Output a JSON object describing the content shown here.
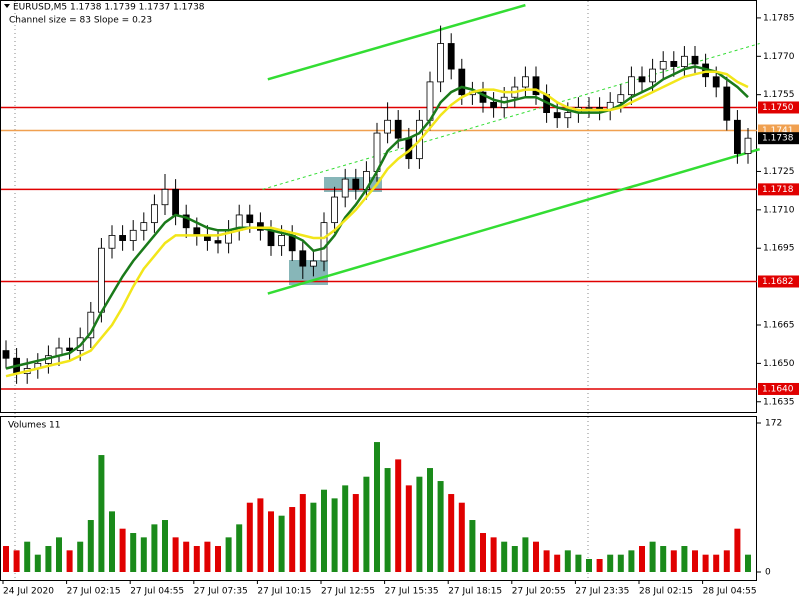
{
  "chart_data": {
    "type": "candlestick",
    "title": "EURUSD,M5  1.1738 1.1739 1.1737 1.1738",
    "subtitle": "Channel size = 83 Slope = 0.23",
    "categories": [
      "24 Jul 2020",
      null,
      null,
      null,
      null,
      null,
      "27 Jul 02:15",
      null,
      null,
      null,
      null,
      null,
      "27 Jul 04:55",
      null,
      null,
      null,
      null,
      null,
      "27 Jul 07:35",
      null,
      null,
      null,
      null,
      null,
      "27 Jul 10:15",
      null,
      null,
      null,
      null,
      null,
      "27 Jul 12:55",
      null,
      null,
      null,
      null,
      null,
      "27 Jul 15:35",
      null,
      null,
      null,
      null,
      null,
      "27 Jul 18:15",
      null,
      null,
      null,
      null,
      null,
      "27 Jul 20:55",
      null,
      null,
      null,
      null,
      null,
      "27 Jul 23:35",
      null,
      null,
      null,
      null,
      null,
      "28 Jul 02:15",
      null,
      null,
      null,
      null,
      null,
      "28 Jul 04:55",
      null,
      null,
      null,
      null
    ],
    "open": [
      1.1655,
      1.1652,
      1.1646,
      1.1648,
      1.165,
      1.1653,
      1.1656,
      1.1655,
      1.166,
      1.167,
      1.1695,
      1.17,
      1.1698,
      1.1702,
      1.1705,
      1.1712,
      1.1718,
      1.1708,
      1.1703,
      1.17,
      1.1698,
      1.1697,
      1.1702,
      1.1708,
      1.1705,
      1.1702,
      1.1696,
      1.17,
      1.1694,
      1.1688,
      1.169,
      1.1705,
      1.1715,
      1.1722,
      1.1718,
      1.1725,
      1.174,
      1.1745,
      1.1738,
      1.173,
      1.1745,
      1.176,
      1.1775,
      1.1765,
      1.1755,
      1.1756,
      1.1752,
      1.175,
      1.1754,
      1.1758,
      1.1762,
      1.1755,
      1.1748,
      1.1746,
      1.1748,
      1.175,
      1.175,
      1.1749,
      1.1752,
      1.1755,
      1.1762,
      1.176,
      1.1765,
      1.1768,
      1.1766,
      1.177,
      1.1767,
      1.1762,
      1.1758,
      1.1745,
      1.1732
    ],
    "high": [
      1.1659,
      1.1656,
      1.1652,
      1.1654,
      1.1657,
      1.166,
      1.166,
      1.1664,
      1.1674,
      1.1699,
      1.1704,
      1.1704,
      1.1706,
      1.1709,
      1.1716,
      1.1724,
      1.1722,
      1.1712,
      1.1707,
      1.1704,
      1.1702,
      1.1706,
      1.1712,
      1.1712,
      1.1709,
      1.1706,
      1.1704,
      1.1704,
      1.1698,
      1.1694,
      1.1709,
      1.1719,
      1.1726,
      1.1726,
      1.1729,
      1.1744,
      1.1752,
      1.1749,
      1.1742,
      1.1749,
      1.1764,
      1.1782,
      1.1779,
      1.1769,
      1.176,
      1.176,
      1.1756,
      1.1758,
      1.1762,
      1.1766,
      1.1766,
      1.1759,
      1.1752,
      1.1752,
      1.1754,
      1.1754,
      1.1754,
      1.1756,
      1.1759,
      1.1766,
      1.1766,
      1.1769,
      1.1772,
      1.1772,
      1.1774,
      1.1774,
      1.1771,
      1.1766,
      1.1762,
      1.1749,
      1.1742
    ],
    "low": [
      1.1648,
      1.1642,
      1.1642,
      1.1644,
      1.1646,
      1.1649,
      1.1651,
      1.1651,
      1.1656,
      1.1666,
      1.1691,
      1.1694,
      1.1694,
      1.1698,
      1.1701,
      1.1708,
      1.1704,
      1.1699,
      1.1696,
      1.1694,
      1.1693,
      1.1693,
      1.1698,
      1.1701,
      1.1698,
      1.1692,
      1.1692,
      1.169,
      1.1683,
      1.1684,
      1.1686,
      1.1701,
      1.1711,
      1.1714,
      1.1714,
      1.1721,
      1.1736,
      1.1734,
      1.1726,
      1.1726,
      1.1741,
      1.1756,
      1.1761,
      1.1751,
      1.1751,
      1.1748,
      1.1746,
      1.1746,
      1.175,
      1.1754,
      1.1751,
      1.1744,
      1.1742,
      1.1742,
      1.1744,
      1.1746,
      1.1745,
      1.1745,
      1.1748,
      1.1751,
      1.1756,
      1.1756,
      1.1761,
      1.1762,
      1.1762,
      1.1763,
      1.1758,
      1.1754,
      1.1741,
      1.1728,
      1.1728
    ],
    "close": [
      1.1652,
      1.1646,
      1.1648,
      1.165,
      1.1653,
      1.1656,
      1.1655,
      1.166,
      1.167,
      1.1695,
      1.17,
      1.1698,
      1.1702,
      1.1705,
      1.1712,
      1.1718,
      1.1708,
      1.1703,
      1.17,
      1.1698,
      1.1697,
      1.1702,
      1.1708,
      1.1705,
      1.1702,
      1.1696,
      1.17,
      1.1694,
      1.1688,
      1.169,
      1.1705,
      1.1715,
      1.1722,
      1.1718,
      1.1725,
      1.174,
      1.1745,
      1.1738,
      1.173,
      1.1745,
      1.176,
      1.1775,
      1.1765,
      1.1755,
      1.1756,
      1.1752,
      1.175,
      1.1754,
      1.1758,
      1.1762,
      1.1755,
      1.1748,
      1.1746,
      1.1748,
      1.175,
      1.175,
      1.1749,
      1.1752,
      1.1755,
      1.1762,
      1.176,
      1.1765,
      1.1768,
      1.1766,
      1.177,
      1.1767,
      1.1762,
      1.1758,
      1.1745,
      1.1732,
      1.1738
    ],
    "series": [
      {
        "color": "#1a7a1a",
        "values": [
          1.1648,
          1.1649,
          1.165,
          1.1651,
          1.1652,
          1.1653,
          1.1654,
          1.1657,
          1.1662,
          1.167,
          1.1677,
          1.1684,
          1.169,
          1.1695,
          1.17,
          1.1705,
          1.1708,
          1.1707,
          1.1705,
          1.1703,
          1.1702,
          1.1702,
          1.1703,
          1.1703,
          1.1703,
          1.1702,
          1.1701,
          1.17,
          1.1698,
          1.1694,
          1.1695,
          1.17,
          1.1707,
          1.1712,
          1.1718,
          1.1725,
          1.1733,
          1.1737,
          1.1738,
          1.174,
          1.1745,
          1.1752,
          1.1756,
          1.1758,
          1.1757,
          1.1755,
          1.1753,
          1.1752,
          1.1753,
          1.1754,
          1.1754,
          1.1752,
          1.175,
          1.1749,
          1.1748,
          1.1748,
          1.1748,
          1.1749,
          1.1751,
          1.1754,
          1.1756,
          1.1758,
          1.1761,
          1.1763,
          1.1765,
          1.1766,
          1.1765,
          1.1764,
          1.1761,
          1.1758,
          1.1754
        ]
      },
      {
        "color": "#f2e61a",
        "values": [
          1.1645,
          1.1646,
          1.1647,
          1.1648,
          1.1649,
          1.165,
          1.1651,
          1.1653,
          1.1655,
          1.166,
          1.1665,
          1.1672,
          1.168,
          1.1687,
          1.1692,
          1.1697,
          1.17,
          1.17,
          1.17,
          1.17,
          1.17,
          1.1701,
          1.1702,
          1.1703,
          1.1703,
          1.1703,
          1.1702,
          1.1701,
          1.17,
          1.1699,
          1.1699,
          1.1702,
          1.1706,
          1.171,
          1.1715,
          1.172,
          1.1726,
          1.173,
          1.1733,
          1.1737,
          1.1742,
          1.1747,
          1.1751,
          1.1754,
          1.1756,
          1.1757,
          1.1757,
          1.1756,
          1.1756,
          1.1757,
          1.1757,
          1.1755,
          1.1752,
          1.175,
          1.1749,
          1.1749,
          1.1749,
          1.1749,
          1.175,
          1.1752,
          1.1754,
          1.1756,
          1.1758,
          1.176,
          1.1762,
          1.1763,
          1.1764,
          1.1764,
          1.1763,
          1.176,
          1.1758
        ]
      }
    ],
    "trendlines": [
      {
        "x": [
          24.7,
          49.0
        ],
        "y": [
          1.1761,
          1.179
        ],
        "color": "#33dd33",
        "dashed": false
      },
      {
        "x": [
          24.2,
          71.1
        ],
        "y": [
          1.1718,
          1.1775
        ],
        "color": "#33dd33",
        "dashed": true
      },
      {
        "x": [
          24.7,
          71.1
        ],
        "y": [
          1.16773,
          1.17337
        ],
        "color": "#33dd33",
        "dashed": false
      }
    ],
    "levels": [
      {
        "value": 1.1741,
        "label": "1.1741",
        "color": "#f0a050"
      },
      {
        "value": 1.175,
        "label": "1.1750",
        "color": "#e00000"
      },
      {
        "value": 1.1718,
        "label": "1.1718",
        "color": "#e00000"
      },
      {
        "value": 1.1682,
        "label": "1.1682",
        "color": "#e00000"
      },
      {
        "value": 1.164,
        "label": "1.1640",
        "color": "#e00000"
      }
    ],
    "last_price": {
      "value": 1.1738,
      "label": "1.1738"
    },
    "ylim": [
      1.1631,
      1.1792
    ],
    "yticks": [
      {
        "value": 1.1785,
        "label": "1.1785"
      },
      {
        "value": 1.177,
        "label": "1.1770"
      },
      {
        "value": 1.1755,
        "label": "1.1755"
      },
      {
        "value": 1.1725,
        "label": "1.1725"
      },
      {
        "value": 1.171,
        "label": "1.1710"
      },
      {
        "value": 1.1695,
        "label": "1.1695"
      },
      {
        "value": 1.1665,
        "label": "1.1665"
      },
      {
        "value": 1.165,
        "label": "1.1650"
      },
      {
        "value": 1.1635,
        "label": "1.1635"
      }
    ],
    "volume": {
      "title": "Volumes 11",
      "up_color": "#1a8a1a",
      "down_color": "#e00000",
      "values": [
        30,
        25,
        35,
        20,
        30,
        40,
        25,
        35,
        60,
        135,
        70,
        50,
        45,
        40,
        55,
        60,
        40,
        35,
        30,
        35,
        30,
        40,
        55,
        80,
        85,
        70,
        65,
        75,
        90,
        80,
        95,
        85,
        100,
        90,
        110,
        150,
        120,
        130,
        100,
        110,
        120,
        105,
        90,
        80,
        60,
        45,
        40,
        35,
        30,
        40,
        35,
        25,
        20,
        25,
        20,
        15,
        15,
        20,
        20,
        25,
        30,
        35,
        30,
        25,
        30,
        25,
        20,
        20,
        25,
        50,
        20
      ],
      "ylim": [
        0,
        172
      ],
      "yticks": [
        0,
        172
      ]
    }
  }
}
